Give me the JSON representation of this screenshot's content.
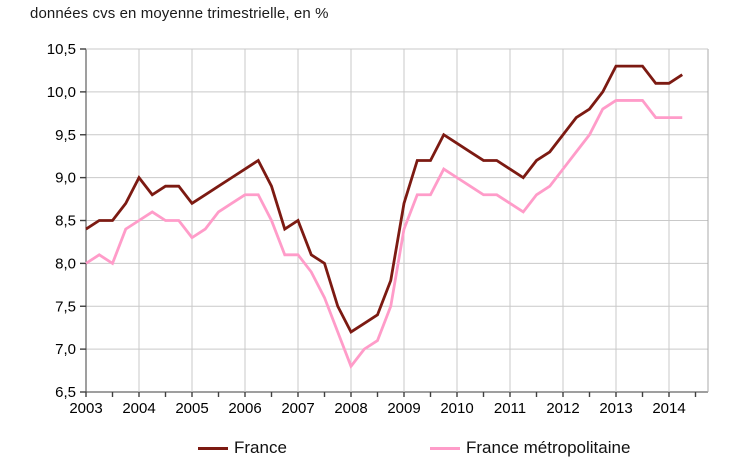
{
  "title": "données cvs en moyenne trimestrielle, en %",
  "chart_data": {
    "type": "line",
    "title": "données cvs en moyenne trimestrielle, en %",
    "xlabel": "",
    "ylabel": "",
    "ylim": [
      6.5,
      10.5
    ],
    "y_tick_step": 0.5,
    "y_tick_labels": [
      "10,5",
      "10,0",
      "9,5",
      "9,0",
      "8,5",
      "8,0",
      "7,5",
      "7,0",
      "6,5"
    ],
    "x_tick_labels": [
      "2003",
      "2004",
      "2005",
      "2006",
      "2007",
      "2008",
      "2009",
      "2010",
      "2011",
      "2012",
      "2013",
      "2014"
    ],
    "x_unit": "quarter",
    "x_start": "2003Q1",
    "x_end": "2014Q2",
    "grid": true,
    "legend_position": "bottom",
    "colors": {
      "grid": "#c9c9c9",
      "frame": "#ababab",
      "axis": "#3f3f3f",
      "text": "#000000"
    },
    "series": [
      {
        "name": "France",
        "color": "#7c1a12",
        "values": [
          8.4,
          8.5,
          8.5,
          8.7,
          9.0,
          8.8,
          8.9,
          8.9,
          8.7,
          8.8,
          8.9,
          9.0,
          9.1,
          9.2,
          8.9,
          8.4,
          8.5,
          8.1,
          8.0,
          7.5,
          7.2,
          7.3,
          7.4,
          7.8,
          8.7,
          9.2,
          9.2,
          9.5,
          9.4,
          9.3,
          9.2,
          9.2,
          9.1,
          9.0,
          9.2,
          9.3,
          9.5,
          9.7,
          9.8,
          10.0,
          10.3,
          10.3,
          10.3,
          10.1,
          10.1,
          10.2
        ]
      },
      {
        "name": "France métropolitaine",
        "color": "#ff9cc9",
        "values": [
          8.0,
          8.1,
          8.0,
          8.4,
          8.5,
          8.6,
          8.5,
          8.5,
          8.3,
          8.4,
          8.6,
          8.7,
          8.8,
          8.8,
          8.5,
          8.1,
          8.1,
          7.9,
          7.6,
          7.2,
          6.8,
          7.0,
          7.1,
          7.5,
          8.4,
          8.8,
          8.8,
          9.1,
          9.0,
          8.9,
          8.8,
          8.8,
          8.7,
          8.6,
          8.8,
          8.9,
          9.1,
          9.3,
          9.5,
          9.8,
          9.9,
          9.9,
          9.9,
          9.7,
          9.7,
          9.7
        ]
      }
    ]
  },
  "legend": {
    "items": [
      {
        "label": "France"
      },
      {
        "label": "France métropolitaine"
      }
    ]
  }
}
